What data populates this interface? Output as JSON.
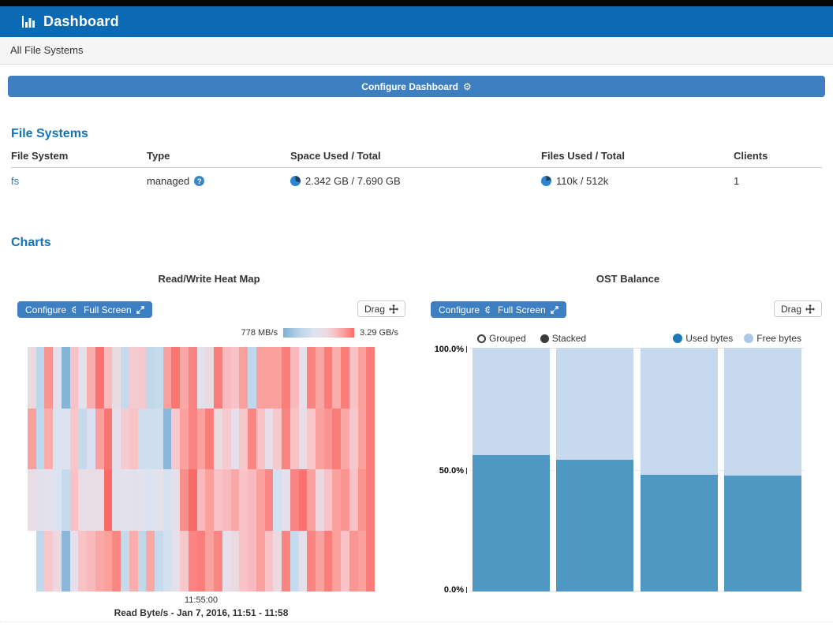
{
  "header": {
    "title": "Dashboard"
  },
  "breadcrumb": {
    "label": "All File Systems"
  },
  "icons": {
    "gear": "⚙"
  },
  "configure_dashboard": {
    "label": "Configure Dashboard"
  },
  "filesystems": {
    "heading": "File Systems",
    "columns": [
      "File System",
      "Type",
      "Space Used / Total",
      "Files Used / Total",
      "Clients"
    ],
    "row": {
      "name": "fs",
      "type": "managed",
      "space": "2.342 GB / 7.690 GB",
      "space_used_pct": 30,
      "files": "110k / 512k",
      "files_used_pct": 21,
      "clients": "1"
    },
    "pie_colors": {
      "used": "#1c4260",
      "free": "#2e86d2"
    }
  },
  "charts": {
    "heading": "Charts"
  },
  "heatmap_panel": {
    "configure_label": "Configure",
    "fullscreen_label": "Full Screen",
    "drag_label": "Drag",
    "scale_min": "778 MB/s",
    "scale_max": "3.29 GB/s",
    "x_tick": "11:55:00",
    "caption": "Read Byte/s - Jan 7, 2016, 11:51 - 11:58"
  },
  "ost_panel": {
    "configure_label": "Configure",
    "fullscreen_label": "Full Screen",
    "drag_label": "Drag",
    "mode_options": [
      {
        "label": "Grouped",
        "selected": false
      },
      {
        "label": "Stacked",
        "selected": true
      }
    ],
    "y_ticks": [
      {
        "label": "100.0%",
        "value": 100
      },
      {
        "label": "50.0%",
        "value": 50
      },
      {
        "label": "0.0%",
        "value": 0
      }
    ]
  },
  "chart_data": [
    {
      "type": "heatmap",
      "title": "Read/Write Heat Map",
      "metric_caption": "Read Byte/s - Jan 7, 2016, 11:51 - 11:58",
      "scale": {
        "min_label": "778 MB/s",
        "max_label": "3.29 GB/s"
      },
      "x_tick_labels": [
        "11:55:00"
      ],
      "colormap_stops": [
        [
          0.0,
          "#7fb1d6"
        ],
        [
          0.25,
          "#bcd6ea"
        ],
        [
          0.42,
          "#dbe3f0"
        ],
        [
          0.52,
          "#e4e0eb"
        ],
        [
          0.62,
          "#ecd9e0"
        ],
        [
          0.72,
          "#f8c2c6"
        ],
        [
          0.85,
          "#faa09d"
        ],
        [
          1.0,
          "#fa6b68"
        ]
      ],
      "rows": [
        [
          0.62,
          0.25,
          0.88,
          0.52,
          0.03,
          0.72,
          0.5,
          0.8,
          0.98,
          0.75,
          0.6,
          0.3,
          0.68,
          0.7,
          0.28,
          0.3,
          0.85,
          0.97,
          0.82,
          0.93,
          0.5,
          0.6,
          0.95,
          0.75,
          0.72,
          0.85,
          0.28,
          0.85,
          0.85,
          0.85,
          0.95,
          0.75,
          0.55,
          0.93,
          0.83,
          0.95,
          0.8,
          0.95,
          0.72,
          0.85,
          0.95
        ],
        [
          0.85,
          0.27,
          0.8,
          0.42,
          0.45,
          0.7,
          0.3,
          0.4,
          0.85,
          0.97,
          0.55,
          0.68,
          0.72,
          0.35,
          0.35,
          0.35,
          0.05,
          0.7,
          0.85,
          0.93,
          0.85,
          0.95,
          0.6,
          0.68,
          0.55,
          0.7,
          0.92,
          0.72,
          0.55,
          0.7,
          0.93,
          0.72,
          0.58,
          0.7,
          0.85,
          0.88,
          0.95,
          0.82,
          0.7,
          0.85,
          0.95
        ],
        [
          0.58,
          0.52,
          0.5,
          0.42,
          0.3,
          0.72,
          0.58,
          0.58,
          0.58,
          1.0,
          0.48,
          0.5,
          0.48,
          0.5,
          0.42,
          0.5,
          0.4,
          0.52,
          0.9,
          1.0,
          0.75,
          0.85,
          0.72,
          0.75,
          0.82,
          0.72,
          0.75,
          0.85,
          0.92,
          0.38,
          0.52,
          0.93,
          0.98,
          0.85,
          0.62,
          0.72,
          0.85,
          0.88,
          0.72,
          0.88,
          0.95
        ],
        [
          null,
          0.28,
          0.7,
          0.62,
          0.05,
          0.55,
          0.72,
          0.75,
          0.82,
          0.85,
          0.92,
          0.3,
          0.8,
          0.28,
          0.82,
          0.3,
          0.38,
          0.52,
          0.7,
          0.93,
          0.95,
          0.85,
          0.92,
          0.55,
          0.62,
          0.72,
          0.75,
          0.85,
          0.72,
          0.62,
          0.93,
          0.3,
          0.55,
          0.93,
          0.85,
          0.95,
          0.85,
          0.72,
          0.88,
          0.85,
          0.95
        ]
      ]
    },
    {
      "type": "bar",
      "title": "OST Balance",
      "stacked": true,
      "categories": [
        "",
        "",
        "",
        ""
      ],
      "series": [
        {
          "name": "Used bytes",
          "legend_color": "#1f77b4",
          "bar_color": "#4f98c4",
          "values": [
            56,
            54,
            48,
            47.5
          ]
        },
        {
          "name": "Free bytes",
          "legend_color": "#aec7e8",
          "bar_color": "#c6d9ef",
          "values": [
            44,
            46,
            52,
            52.5
          ]
        }
      ],
      "ylim": [
        0,
        100
      ],
      "y_tick_labels": [
        "0.0%",
        "50.0%",
        "100.0%"
      ],
      "grid": true,
      "legend_position": "top-right"
    }
  ]
}
